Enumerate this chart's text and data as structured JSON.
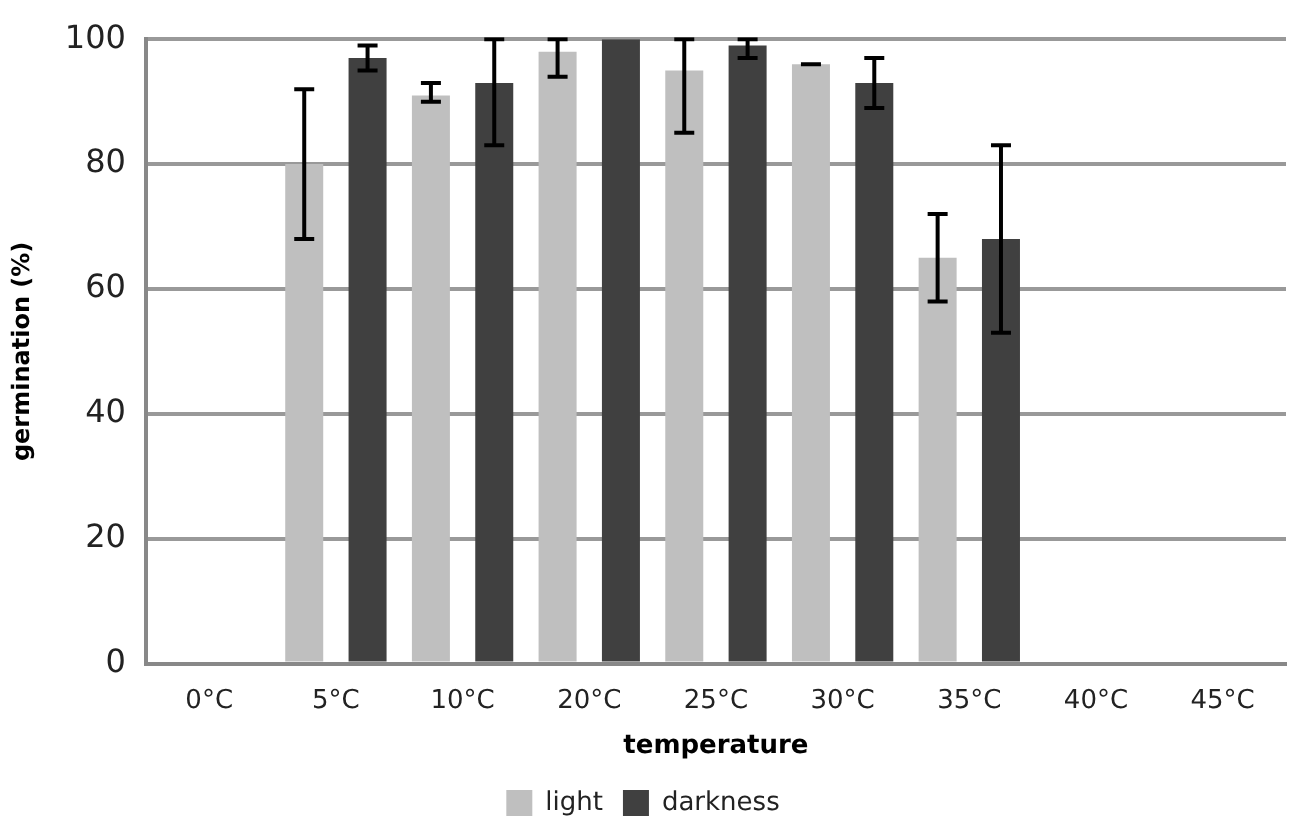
{
  "chart_data": {
    "type": "bar",
    "xlabel": "temperature",
    "ylabel": "germination (%)",
    "categories": [
      "0°C",
      "5°C",
      "10°C",
      "20°C",
      "25°C",
      "30°C",
      "35°C",
      "40°C",
      "45°C"
    ],
    "series": [
      {
        "name": "light",
        "color": "#bfbfbf",
        "values": [
          0,
          80,
          91,
          98,
          95,
          96,
          65,
          0,
          0
        ],
        "errors": [
          null,
          12,
          [
            90,
            93
          ],
          [
            94,
            100
          ],
          [
            85,
            100
          ],
          [
            96,
            96
          ],
          [
            58,
            72
          ],
          null,
          null
        ]
      },
      {
        "name": "darkness",
        "color": "#404040",
        "values": [
          0,
          97,
          93,
          100,
          99,
          93,
          68,
          0,
          0
        ],
        "errors": [
          null,
          [
            95,
            99
          ],
          [
            83,
            100
          ],
          null,
          [
            97,
            100
          ],
          [
            89,
            97
          ],
          [
            53,
            83
          ],
          null,
          null
        ]
      }
    ],
    "ylim": [
      0,
      100
    ],
    "yticks": [
      0,
      20,
      40,
      60,
      80,
      100
    ],
    "grid": "y",
    "legend": "bottom"
  }
}
